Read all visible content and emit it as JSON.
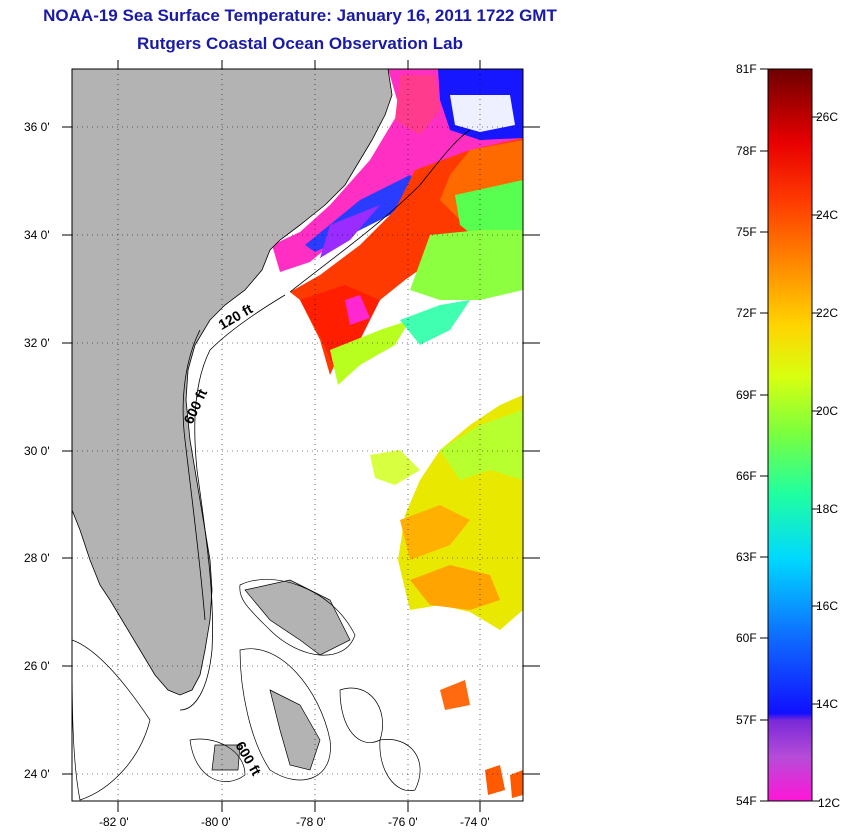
{
  "map": {
    "title": "NOAA-19 Sea Surface Temperature:  January 16, 2011 1722 GMT",
    "subtitle": "Rutgers Coastal Ocean Observation Lab",
    "lat_labels": [
      "36 0'",
      "34 0'",
      "32 0'",
      "30 0'",
      "28 0'",
      "26 0'",
      "24 0'"
    ],
    "lon_labels": [
      "-82 0'",
      "-80 0'",
      "-78 0'",
      "-76 0'",
      "-74 0'"
    ],
    "isobath_labels": [
      "120 ft",
      "600 ft",
      "600 ft"
    ]
  },
  "colorbar": {
    "f_labels": [
      "81F",
      "78F",
      "75F",
      "72F",
      "69F",
      "66F",
      "63F",
      "60F",
      "57F",
      "54F"
    ],
    "c_labels": [
      "26C",
      "24C",
      "22C",
      "20C",
      "18C",
      "16C",
      "14C",
      "12C"
    ]
  },
  "colors": {
    "title": "#1a1aa8",
    "land": "#b3b3b3"
  }
}
